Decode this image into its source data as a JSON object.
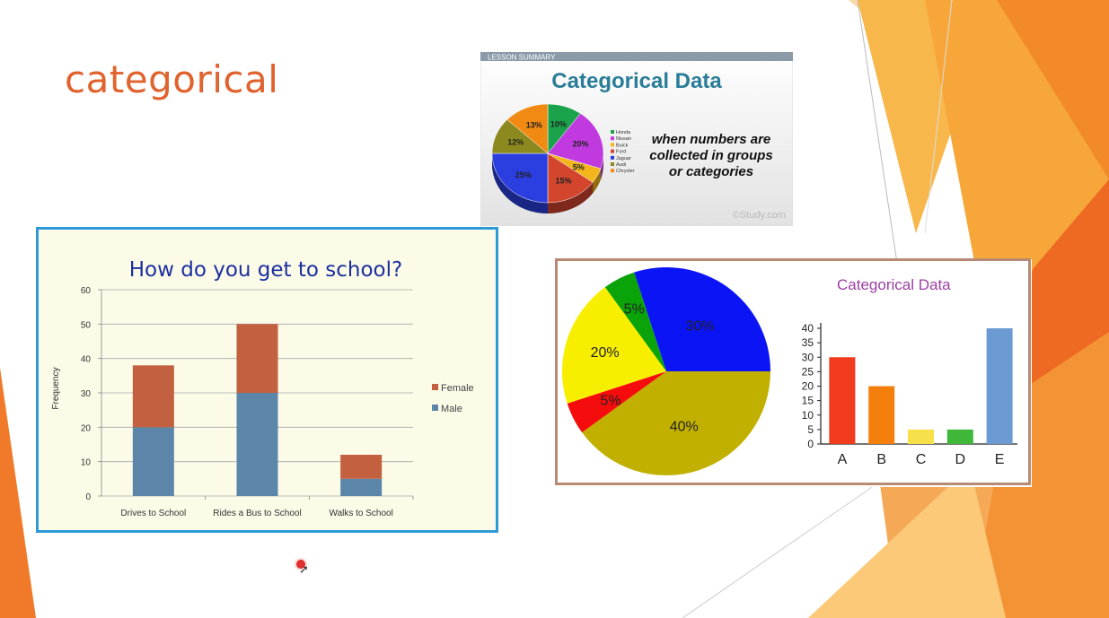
{
  "slide": {
    "title": "categorical"
  },
  "chart_data": [
    {
      "type": "pie",
      "header_tag": "LESSON SUMMARY",
      "title": "Categorical Data",
      "description_lines": [
        "when numbers are",
        "collected in groups",
        "or categories"
      ],
      "watermark": "©Study.com",
      "labels": [
        "Honda",
        "Nissan",
        "Buick",
        "Ford",
        "Jaguar",
        "Audi",
        "Chrysler"
      ],
      "values": [
        10,
        20,
        5,
        15,
        25,
        12,
        13
      ],
      "value_labels": [
        "10%",
        "20%",
        "5%",
        "15%",
        "25%",
        "12%",
        "13%"
      ],
      "colors": [
        "#1aa34a",
        "#c03adf",
        "#f2b51b",
        "#d4452e",
        "#2b3fe0",
        "#8c8a1e",
        "#f08a12"
      ],
      "legend_position": "right"
    },
    {
      "type": "bar",
      "stacked": true,
      "title": "How do you get to school?",
      "xlabel": "",
      "ylabel": "Frequency",
      "ylim": [
        0,
        60
      ],
      "yticks": [
        0,
        10,
        20,
        30,
        40,
        50,
        60
      ],
      "categories": [
        "Drives to School",
        "Rides a Bus to School",
        "Walks to School"
      ],
      "series": [
        {
          "name": "Male",
          "values": [
            20,
            30,
            5
          ],
          "color": "#5b86aa"
        },
        {
          "name": "Female",
          "values": [
            18,
            20,
            7
          ],
          "color": "#c2603f"
        }
      ],
      "grid": true,
      "legend_position": "right"
    },
    {
      "type": "pie",
      "labels": [
        "",
        "",
        "",
        "",
        ""
      ],
      "values": [
        30,
        40,
        5,
        20,
        5
      ],
      "value_labels": [
        "30%",
        "40%",
        "5%",
        "20%",
        "5%"
      ],
      "colors": [
        "#0a14f5",
        "#c2b000",
        "#f50d0d",
        "#f8ef00",
        "#0aa30a"
      ]
    },
    {
      "type": "bar",
      "title": "Categorical Data",
      "categories": [
        "A",
        "B",
        "C",
        "D",
        "E"
      ],
      "values": [
        30,
        20,
        5,
        5,
        40
      ],
      "colors": [
        "#f23a1c",
        "#f57f0c",
        "#f7e04a",
        "#3fb83a",
        "#6c9bd3"
      ],
      "ylim": [
        0,
        40
      ],
      "yticks": [
        0,
        5,
        10,
        15,
        20,
        25,
        30,
        35,
        40
      ]
    }
  ]
}
